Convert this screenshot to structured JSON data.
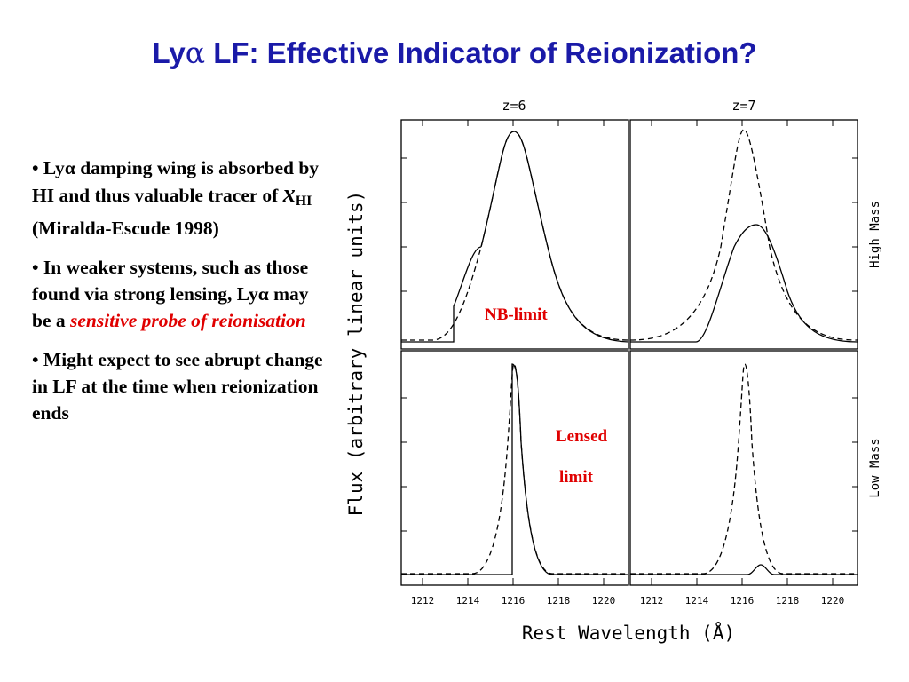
{
  "title": {
    "part1": "Ly",
    "greek": "α",
    "part2": " LF: Effective Indicator of Reionization?"
  },
  "bullets": [
    {
      "marker": "• ",
      "a": "Ly",
      "greek": "α",
      "b": " damping wing is absorbed by HI and thus valuable tracer of ",
      "x": "x",
      "sub": "HI",
      "c": " (Miralda-Escude 1998)"
    },
    {
      "marker": "• ",
      "a": "In weaker systems, such as those found via strong lensing, Ly",
      "greek": "α",
      "b": " may be a ",
      "red": "sensitive probe of reionisation"
    },
    {
      "marker": "• ",
      "a": "Might expect to see abrupt change in LF at the time when reionization ends"
    }
  ],
  "figure": {
    "col_titles": [
      "z=6",
      "z=7"
    ],
    "row_labels": [
      "High Mass",
      "Low Mass"
    ],
    "ylabel": "Flux (arbitrary linear units)",
    "xlabel": "Rest Wavelength (Å)",
    "xticks": [
      "1212",
      "1214",
      "1216",
      "1218",
      "1220"
    ],
    "annotations": {
      "nb_limit": "NB-limit",
      "lensed1": "Lensed",
      "lensed2": "limit"
    }
  },
  "colors": {
    "title": "#1a1aa8",
    "highlight": "#e00000"
  }
}
